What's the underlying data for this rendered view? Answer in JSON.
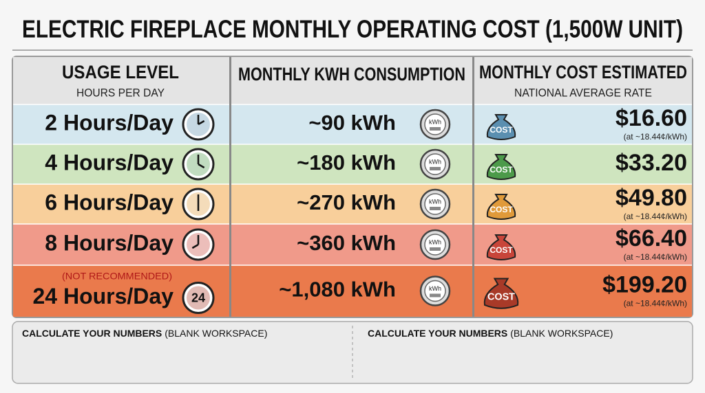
{
  "title": "ELECTRIC FIREPLACE MONTHLY OPERATING COST (1,500W UNIT)",
  "table": {
    "columns": [
      {
        "title": "USAGE LEVEL",
        "subtitle": "HOURS PER DAY"
      },
      {
        "title": "MONTHLY KWH CONSUMPTION"
      },
      {
        "title": "MONTHLY COST ESTIMATED",
        "subtitle": "NATIONAL AVERAGE RATE"
      }
    ],
    "rows": [
      {
        "usage": "2 Hours/Day",
        "kwh": "~90 kWh",
        "meter": "kWh",
        "bag": "COST",
        "cost": "$16.60",
        "rate": "(at ~18.44¢/kWh)"
      },
      {
        "usage": "4 Hours/Day",
        "kwh": "~180 kWh",
        "meter": "kWh",
        "bag": "COST",
        "cost": "$33.20"
      },
      {
        "usage": "6 Hours/Day",
        "kwh": "~270 kWh",
        "meter": "kWh",
        "bag": "COST",
        "cost": "$49.80",
        "rate": "(at ~18.44¢/kWh)"
      },
      {
        "usage": "8 Hours/Day",
        "kwh": "~360 kWh",
        "meter": "kWh",
        "bag": "COST",
        "cost": "$66.40",
        "rate": "(at ~18.44¢/kWh)"
      },
      {
        "note": "(NOT RECOMMENDED)",
        "usage": "24 Hours/Day",
        "clock": "24",
        "kwh": "~1,080 kWh",
        "meter": "kWh",
        "bag": "COST",
        "cost": "$199.20",
        "rate": "(at ~18.44¢/kWh)"
      }
    ]
  },
  "workspace": [
    {
      "bold": "CALCULATE YOUR NUMBERS",
      "rest": "(BLANK WORKSPACE)"
    },
    {
      "bold": "CALCULATE YOUR NUMBERS",
      "rest": "(BLANK WORKSPACE)"
    }
  ]
}
